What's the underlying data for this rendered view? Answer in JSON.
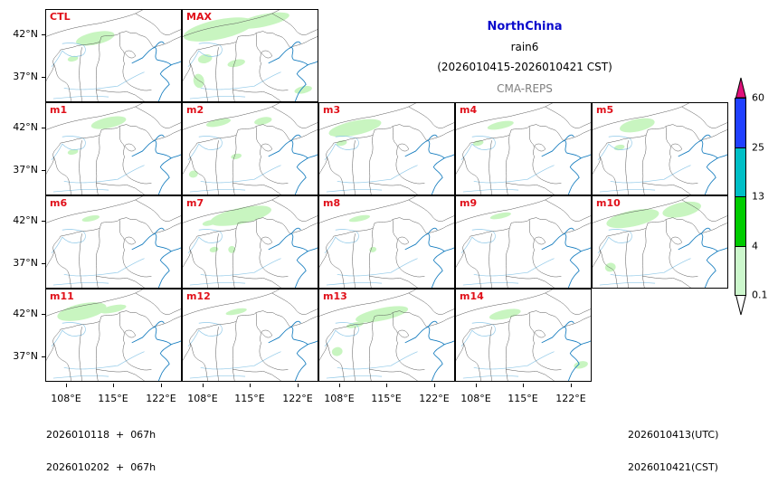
{
  "header": {
    "region": "NorthChina",
    "variable": "rain6",
    "period": "(2026010415-2026010421 CST)",
    "model": "CMA-REPS"
  },
  "footer": {
    "left_line1": "2026010118  +  067h",
    "left_line2": "2026010202  +  067h",
    "right_line1": "2026010413(UTC)",
    "right_line2": "2026010421(CST)"
  },
  "axes": {
    "y_ticks": [
      "42°N",
      "37°N"
    ],
    "x_ticks": [
      "108°E",
      "115°E",
      "122°E"
    ]
  },
  "colors": {
    "title": "#0a0acc",
    "panel_label": "#e0101a",
    "model": "#808080",
    "rain_light": "#c8f5c0"
  },
  "colorbar": {
    "levels": [
      "0.1",
      "4",
      "13",
      "25",
      "60"
    ],
    "colors": [
      "#ccf7cc",
      "#00cc00",
      "#00bfc6",
      "#2040ff"
    ],
    "over_color": "#e0107a",
    "under_color": "#ffffff"
  },
  "panels": [
    {
      "label": "CTL",
      "row": 0,
      "col": 0,
      "blobs": [
        [
          55,
          32,
          22,
          7
        ],
        [
          30,
          55,
          6,
          3
        ]
      ]
    },
    {
      "label": "MAX",
      "row": 0,
      "col": 1,
      "blobs": [
        [
          40,
          22,
          40,
          11
        ],
        [
          90,
          12,
          30,
          7
        ],
        [
          25,
          55,
          8,
          5
        ],
        [
          18,
          80,
          6,
          8
        ],
        [
          60,
          60,
          10,
          4
        ],
        [
          135,
          90,
          10,
          4
        ]
      ]
    },
    {
      "label": "m1",
      "row": 1,
      "col": 0,
      "blobs": [
        [
          70,
          22,
          20,
          6
        ],
        [
          30,
          55,
          6,
          3
        ]
      ]
    },
    {
      "label": "m2",
      "row": 1,
      "col": 1,
      "blobs": [
        [
          40,
          22,
          14,
          4
        ],
        [
          90,
          20,
          10,
          4
        ],
        [
          12,
          80,
          5,
          4
        ],
        [
          60,
          60,
          6,
          3
        ]
      ]
    },
    {
      "label": "m3",
      "row": 1,
      "col": 2,
      "blobs": [
        [
          40,
          28,
          30,
          8
        ],
        [
          25,
          45,
          6,
          3
        ]
      ]
    },
    {
      "label": "m4",
      "row": 1,
      "col": 3,
      "blobs": [
        [
          50,
          25,
          15,
          4
        ],
        [
          25,
          45,
          6,
          3
        ]
      ]
    },
    {
      "label": "m5",
      "row": 1,
      "col": 4,
      "blobs": [
        [
          50,
          25,
          20,
          7
        ],
        [
          30,
          50,
          6,
          3
        ]
      ]
    },
    {
      "label": "m6",
      "row": 2,
      "col": 0,
      "blobs": [
        [
          50,
          25,
          10,
          3
        ]
      ]
    },
    {
      "label": "m7",
      "row": 2,
      "col": 1,
      "blobs": [
        [
          65,
          22,
          35,
          9
        ],
        [
          30,
          30,
          8,
          3
        ],
        [
          35,
          60,
          5,
          3
        ],
        [
          55,
          60,
          4,
          4
        ]
      ]
    },
    {
      "label": "m8",
      "row": 2,
      "col": 2,
      "blobs": [
        [
          45,
          25,
          12,
          3
        ],
        [
          60,
          60,
          4,
          3
        ]
      ]
    },
    {
      "label": "m9",
      "row": 2,
      "col": 3,
      "blobs": [
        [
          50,
          22,
          12,
          3
        ]
      ]
    },
    {
      "label": "m10",
      "row": 2,
      "col": 4,
      "blobs": [
        [
          45,
          25,
          30,
          9
        ],
        [
          100,
          15,
          22,
          8
        ],
        [
          20,
          80,
          6,
          5
        ]
      ]
    },
    {
      "label": "m11",
      "row": 3,
      "col": 0,
      "blobs": [
        [
          40,
          25,
          28,
          9
        ],
        [
          75,
          22,
          15,
          4
        ]
      ]
    },
    {
      "label": "m12",
      "row": 3,
      "col": 1,
      "blobs": [
        [
          60,
          25,
          12,
          3
        ]
      ]
    },
    {
      "label": "m13",
      "row": 3,
      "col": 2,
      "blobs": [
        [
          70,
          28,
          30,
          7
        ],
        [
          40,
          40,
          10,
          3
        ],
        [
          20,
          70,
          6,
          5
        ]
      ]
    },
    {
      "label": "m14",
      "row": 3,
      "col": 3,
      "blobs": [
        [
          55,
          28,
          18,
          5
        ],
        [
          140,
          85,
          8,
          4
        ]
      ]
    }
  ],
  "chart_data": {
    "type": "heatmap",
    "title": "NorthChina",
    "subtitle": "rain6 (2026010415-2026010421 CST) CMA-REPS",
    "xlabel": "",
    "ylabel": "",
    "x_ticks": [
      "108°E",
      "115°E",
      "122°E"
    ],
    "y_ticks": [
      "42°N",
      "37°N"
    ],
    "panels": [
      "CTL",
      "MAX",
      "m1",
      "m2",
      "m3",
      "m4",
      "m5",
      "m6",
      "m7",
      "m8",
      "m9",
      "m10",
      "m11",
      "m12",
      "m13",
      "m14"
    ],
    "colorbar_levels": [
      0.1,
      4,
      13,
      25,
      60
    ],
    "colorbar_colors": [
      "#ccf7cc",
      "#00cc00",
      "#00bfc6",
      "#2040ff"
    ],
    "extend": "both",
    "observed_max_category": "0.1-4 (light rain, pale green) in northwest of domain"
  }
}
